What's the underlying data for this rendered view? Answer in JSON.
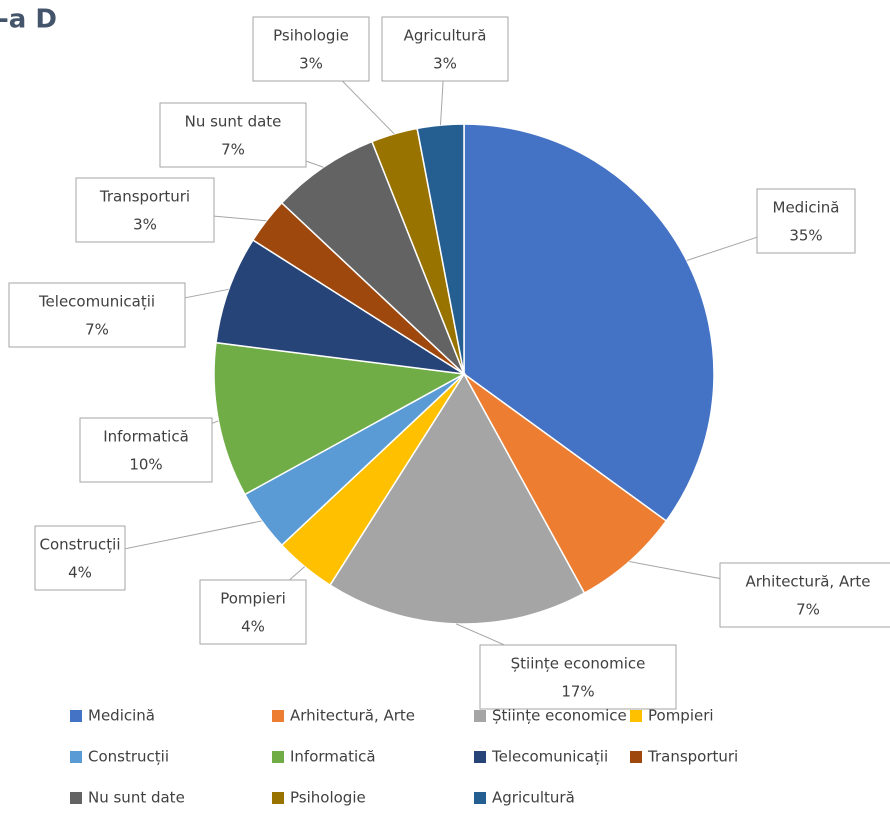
{
  "chart_data": {
    "type": "pie",
    "title": "-a D",
    "categories": [
      "Medicină",
      "Arhitectură, Arte",
      "Științe economice",
      "Pompieri",
      "Construcții",
      "Informatică",
      "Telecomunicații",
      "Transporturi",
      "Nu sunt date",
      "Psihologie",
      "Agricultură"
    ],
    "values": [
      35,
      7,
      17,
      4,
      4,
      10,
      7,
      3,
      7,
      3,
      3
    ],
    "value_labels": [
      "35%",
      "7%",
      "17%",
      "4%",
      "4%",
      "10%",
      "7%",
      "3%",
      "7%",
      "3%",
      "3%"
    ],
    "colors": [
      "#4472c4",
      "#ed7d31",
      "#a5a5a5",
      "#ffc000",
      "#5b9bd5",
      "#70ad47",
      "#264478",
      "#9e480e",
      "#636363",
      "#997300",
      "#255e91"
    ],
    "legend": "bottom"
  }
}
